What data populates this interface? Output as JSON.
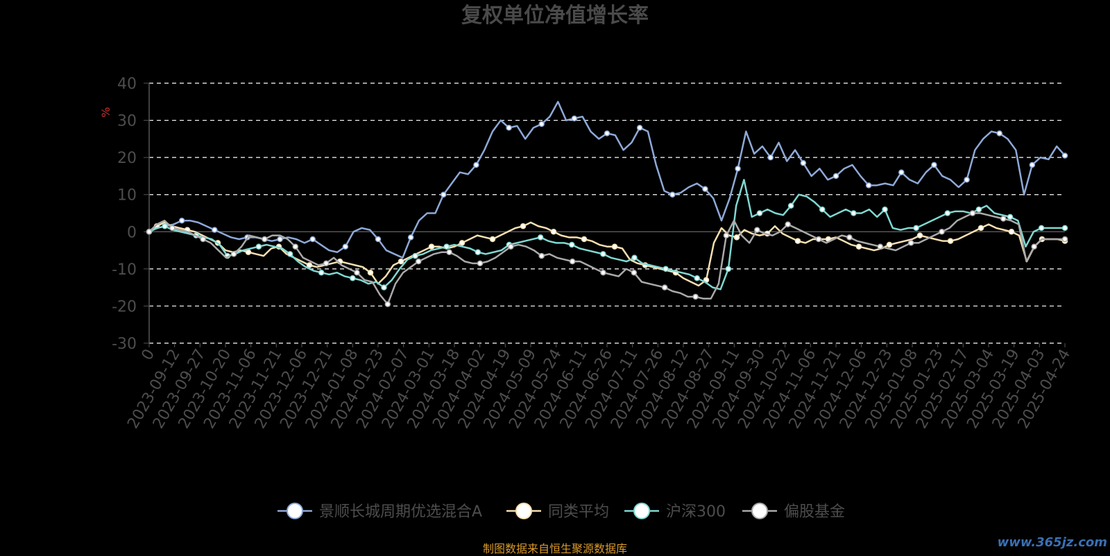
{
  "chart_data": {
    "type": "line",
    "title": "复权单位净值增长率",
    "ylabel": "%",
    "ylim": [
      -30,
      40
    ],
    "yticks": [
      40,
      30,
      20,
      10,
      0,
      -10,
      -20,
      -30
    ],
    "grid": true,
    "legend_position": "bottom",
    "x_tick_labels": [
      "0",
      "2023-09-12",
      "2023-09-27",
      "2023-10-20",
      "2023-11-06",
      "2023-11-21",
      "2023-12-06",
      "2023-12-21",
      "2024-01-08",
      "2024-01-23",
      "2024-02-07",
      "2024-03-01",
      "2024-03-18",
      "2024-04-02",
      "2024-04-19",
      "2024-05-09",
      "2024-05-24",
      "2024-06-11",
      "2024-06-26",
      "2024-07-11",
      "2024-07-26",
      "2024-08-12",
      "2024-08-27",
      "2024-09-11",
      "2024-09-30",
      "2024-10-22",
      "2024-11-06",
      "2024-11-21",
      "2024-12-06",
      "2024-12-23",
      "2025-01-08",
      "2025-01-23",
      "2025-02-17",
      "2025-03-04",
      "2025-03-19",
      "2025-04-03",
      "2025-04-24"
    ],
    "series": [
      {
        "name": "景顺长城周期优选混合A",
        "color": "#8ea9d8",
        "values": [
          0,
          1,
          1.5,
          2,
          3,
          3,
          2.5,
          1.5,
          0.5,
          -0.5,
          -1.5,
          -2,
          -1.5,
          -1.5,
          -2,
          -2.5,
          -2,
          -1.5,
          -2,
          -3,
          -2,
          -3.5,
          -5,
          -5.5,
          -4,
          0,
          1,
          0.5,
          -2,
          -5,
          -6,
          -7,
          -1.5,
          3,
          5,
          5,
          10,
          13,
          16,
          15.5,
          18,
          22,
          27,
          30,
          28,
          28.5,
          25,
          28,
          29,
          31,
          35,
          30,
          30.5,
          31,
          27,
          25,
          26.5,
          26,
          22,
          24,
          28,
          27,
          18,
          11,
          10,
          10.5,
          12,
          13,
          11.5,
          9,
          3,
          9,
          17,
          27,
          21,
          23,
          20,
          24,
          19,
          22,
          18.5,
          15,
          17,
          14,
          15,
          17,
          18,
          15,
          12.5,
          12.5,
          13,
          12.5,
          16,
          14,
          13,
          16,
          18,
          15,
          14,
          12,
          14,
          22,
          25,
          27,
          26.5,
          25,
          22,
          10,
          18,
          20,
          19.5,
          23,
          20.5
        ]
      },
      {
        "name": "同类平均",
        "color": "#f6dfb0",
        "values": [
          0,
          1.5,
          2.5,
          1.5,
          1,
          0.5,
          0,
          -1,
          -2,
          -3,
          -5,
          -5.5,
          -5,
          -5.5,
          -6,
          -6.5,
          -4.5,
          -4,
          -6,
          -7,
          -8,
          -9,
          -9.5,
          -9,
          -8.5,
          -8,
          -8.5,
          -9,
          -9.5,
          -11,
          -14,
          -12,
          -9,
          -8,
          -7,
          -6,
          -5,
          -4,
          -4,
          -4.5,
          -4,
          -3,
          -2,
          -1,
          -1.5,
          -2,
          -1,
          0,
          1,
          1.5,
          2.5,
          1.5,
          1,
          0,
          -1,
          -1.5,
          -1.5,
          -2,
          -2.5,
          -3.5,
          -4,
          -4,
          -4.5,
          -7.5,
          -8.5,
          -9,
          -9.5,
          -10,
          -10.5,
          -11,
          -12.5,
          -13.5,
          -14.5,
          -13,
          -3,
          1,
          -1,
          -1.5,
          0.5,
          -0.5,
          -1,
          -0.5,
          1.5,
          -0.5,
          -1.5,
          -2.5,
          -3,
          -2,
          -2,
          -2,
          -1.5,
          -2.5,
          -3.5,
          -4,
          -4.5,
          -5,
          -4.5,
          -3.5,
          -3,
          -2.5,
          -2,
          -1,
          -1.5,
          -2,
          -2.5,
          -2.5,
          -2,
          -1,
          0,
          1,
          2,
          1,
          0.5,
          0,
          -1,
          -8,
          -4,
          -2,
          -2,
          -2,
          -2.5
        ]
      },
      {
        "name": "沪深300",
        "color": "#7fd8d2",
        "values": [
          0,
          1,
          1.5,
          0.5,
          0,
          -0.5,
          -1,
          -1.5,
          -2,
          -3.5,
          -6.5,
          -6,
          -5,
          -4.5,
          -4,
          -3.5,
          -4,
          -4.5,
          -6,
          -8,
          -9.5,
          -10.5,
          -11,
          -11.5,
          -11,
          -12,
          -12.5,
          -13,
          -14,
          -13.5,
          -15,
          -13,
          -10,
          -7.5,
          -6.5,
          -6,
          -5,
          -4.5,
          -4,
          -3.5,
          -4,
          -4.5,
          -5.5,
          -6,
          -5.5,
          -5,
          -3.5,
          -3,
          -2.5,
          -2,
          -1.5,
          -2.5,
          -3,
          -3,
          -3.5,
          -4.5,
          -5,
          -5.5,
          -6,
          -7,
          -7.5,
          -8,
          -7,
          -8.5,
          -9,
          -9.5,
          -10,
          -10.5,
          -11,
          -11.5,
          -12.5,
          -13.5,
          -15,
          -15.5,
          -10,
          7,
          14,
          4,
          5,
          6,
          5,
          4.5,
          7,
          10,
          9.5,
          8,
          6,
          4,
          5,
          6,
          5,
          5,
          6,
          4,
          6,
          1,
          0.5,
          1,
          1,
          2,
          3,
          4,
          5,
          5.5,
          5.5,
          5,
          6,
          7,
          5,
          4.5,
          4,
          3,
          -4,
          0,
          1,
          1,
          1,
          1
        ]
      },
      {
        "name": "偏股基金",
        "color": "#aaaaaa",
        "values": [
          0,
          2,
          3,
          1,
          0.5,
          0,
          -1,
          -2,
          -3,
          -5,
          -7,
          -6,
          -4,
          -1,
          -1.5,
          -2,
          -1,
          -1,
          -2,
          -4,
          -7,
          -8,
          -9,
          -8.5,
          -7,
          -9,
          -10,
          -11,
          -13,
          -13.5,
          -17,
          -19.5,
          -14,
          -11,
          -9.5,
          -8,
          -7,
          -6,
          -5.5,
          -5.5,
          -6.5,
          -8,
          -8.5,
          -8.5,
          -8,
          -7,
          -5.5,
          -4,
          -3.5,
          -4,
          -5,
          -6.5,
          -6,
          -7,
          -7.5,
          -8,
          -8,
          -9,
          -10,
          -11,
          -11.5,
          -12,
          -10,
          -11,
          -13.5,
          -14,
          -14.5,
          -15,
          -16,
          -16.5,
          -17.5,
          -17.5,
          -18,
          -18,
          -14,
          -1,
          3,
          -1,
          -3,
          0.5,
          -0.5,
          -1,
          0,
          2,
          1,
          0,
          -1,
          -2,
          -3,
          -2,
          -1,
          -1.5,
          -2.5,
          -3,
          -3.5,
          -4,
          -4.5,
          -5,
          -4,
          -3,
          -3,
          -2,
          -1,
          0,
          1,
          3,
          4,
          5,
          5,
          4.5,
          4,
          3.5,
          3,
          2,
          -8,
          -4,
          -2,
          -2,
          -2,
          -2
        ]
      }
    ],
    "legend": [
      "景顺长城周期优选混合A",
      "同类平均",
      "沪深300",
      "偏股基金"
    ]
  },
  "footer": {
    "source": "制图数据来自恒生聚源数据库",
    "watermark": "www.365jz.com"
  }
}
